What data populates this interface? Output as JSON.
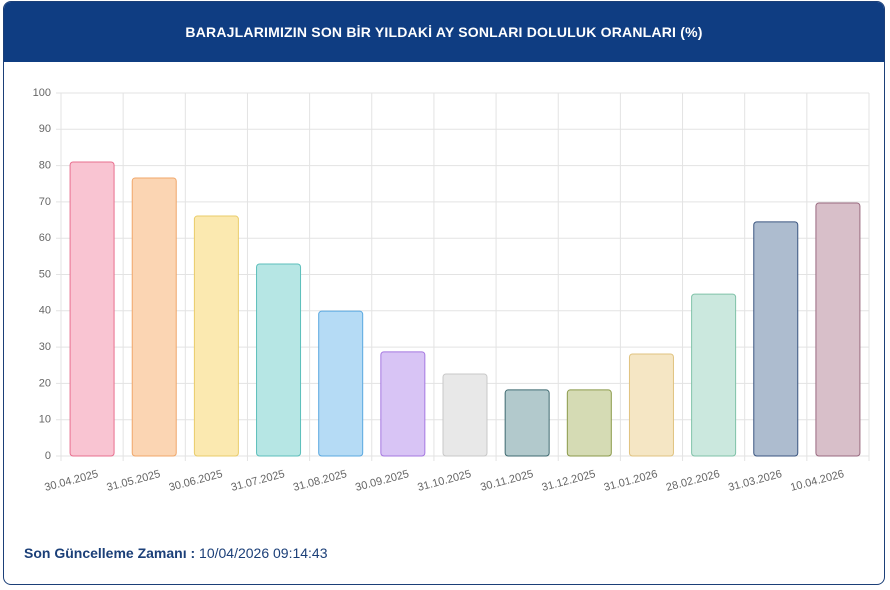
{
  "chart_data": {
    "type": "bar",
    "title": "BARAJLARIMIZIN SON BİR YILDAKİ AY SONLARI DOLULUK ORANLARI (%)",
    "categories": [
      "30.04.2025",
      "31.05.2025",
      "30.06.2025",
      "31.07.2025",
      "31.08.2025",
      "30.09.2025",
      "31.10.2025",
      "30.11.2025",
      "31.12.2025",
      "31.01.2026",
      "28.02.2026",
      "31.03.2026",
      "10.04.2026"
    ],
    "values": [
      81.0,
      76.6,
      66.1,
      52.9,
      39.9,
      28.7,
      22.6,
      18.2,
      18.2,
      28.1,
      44.6,
      64.5,
      69.7
    ],
    "colors": [
      "#f9c4d2",
      "#fbd5b3",
      "#fbe9b0",
      "#b6e6e4",
      "#b5dbf5",
      "#d8c4f5",
      "#e8e8e8",
      "#b2c9cc",
      "#d5dbb4",
      "#f5e6c4",
      "#cbe8de",
      "#adbccf",
      "#d8bfc9"
    ],
    "border_colors": [
      "#e86f8f",
      "#f0a76a",
      "#e9cc6a",
      "#5cbfbb",
      "#5aa8e0",
      "#a577e0",
      "#c8c8c8",
      "#3f6a70",
      "#8b9a4a",
      "#e0c380",
      "#7fc2a8",
      "#3a5580",
      "#9a6a80"
    ],
    "ylim": [
      0,
      100
    ],
    "yticks": [
      0,
      10,
      20,
      30,
      40,
      50,
      60,
      70,
      80,
      90,
      100
    ],
    "grid": true
  },
  "footer": {
    "label": "Son Güncelleme Zamanı :",
    "value": "10/04/2026 09:14:43"
  }
}
